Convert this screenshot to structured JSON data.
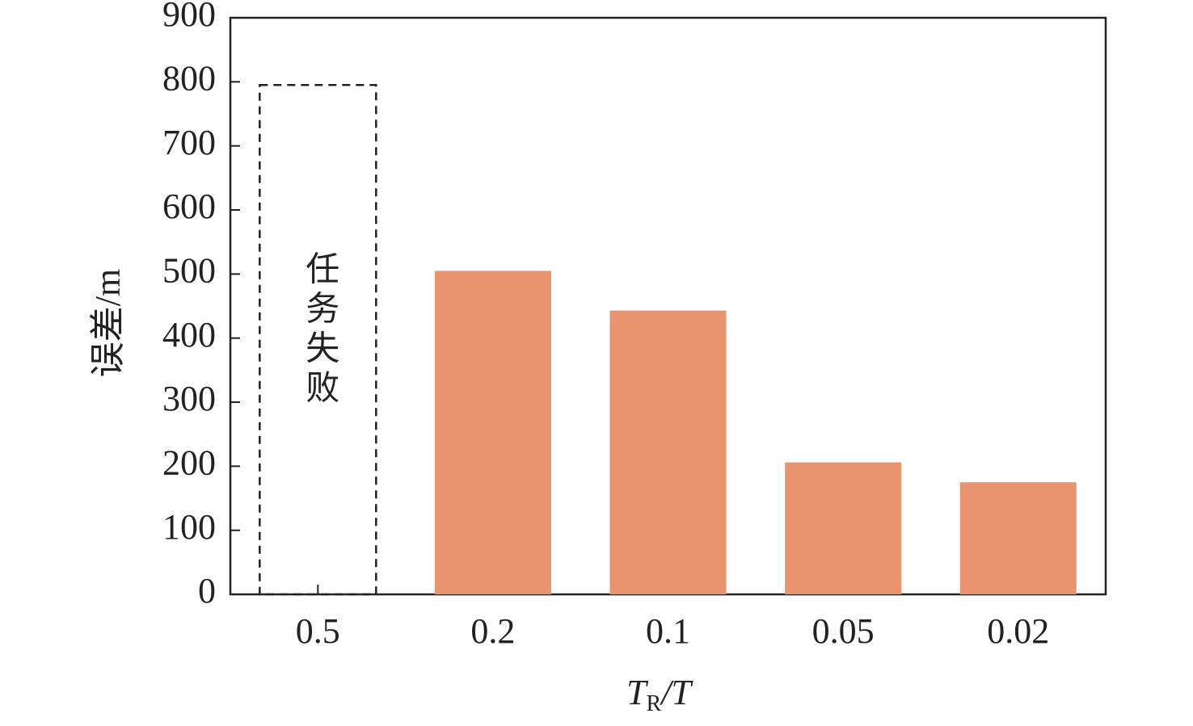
{
  "chart_data": {
    "type": "bar",
    "categories": [
      "0.5",
      "0.2",
      "0.1",
      "0.05",
      "0.02"
    ],
    "values": [
      null,
      505,
      443,
      206,
      175
    ],
    "color": "#e8956f",
    "ylim": [
      0,
      900
    ],
    "yticks": [
      0,
      100,
      200,
      300,
      400,
      500,
      600,
      700,
      800,
      900
    ],
    "ylabel": "误差/m",
    "xlabel": {
      "main": "T",
      "sub": "R",
      "rest": "/T"
    },
    "annotation": {
      "text": "任务失败",
      "category": 0,
      "y": 795
    }
  }
}
